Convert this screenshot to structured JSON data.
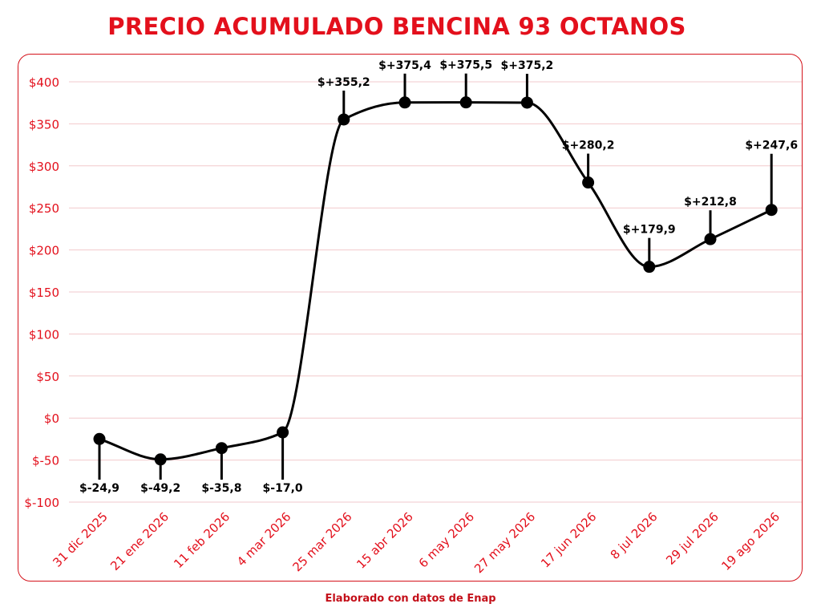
{
  "header": {
    "title": "PRECIO ACUMULADO BENCINA 93 OCTANOS"
  },
  "footer": {
    "credit": "Elaborado con datos de Enap"
  },
  "colors": {
    "accent": "#e3101c",
    "line": "#000000",
    "grid": "#f2c9cc"
  },
  "chart_data": {
    "type": "line",
    "title": "PRECIO ACUMULADO BENCINA 93 OCTANOS",
    "xlabel": "",
    "ylabel": "",
    "ylim": [
      -100,
      400
    ],
    "yticks": [
      -100,
      -50,
      0,
      50,
      100,
      150,
      200,
      250,
      300,
      350,
      400
    ],
    "ytick_labels": [
      "$-100",
      "$-50",
      "$0",
      "$50",
      "$100",
      "$150",
      "$200",
      "$250",
      "$300",
      "$350",
      "$400"
    ],
    "grid": true,
    "categories": [
      "31 dic 2025",
      "21 ene 2026",
      "11 feb 2026",
      "4 mar 2026",
      "25 mar 2026",
      "15 abr 2026",
      "6 may 2026",
      "27 may 2026",
      "17 jun 2026",
      "8 jul 2026",
      "29 jul 2026",
      "19 ago 2026"
    ],
    "values": [
      -24.9,
      -49.2,
      -35.8,
      -17.0,
      355.2,
      375.4,
      375.5,
      375.2,
      280.2,
      179.9,
      212.8,
      247.6
    ],
    "data_labels": [
      "$-24,9",
      "$-49,2",
      "$-35,8",
      "$-17,0",
      "$+355,2",
      "$+375,4",
      "$+375,5",
      "$+375,2",
      "$+280,2",
      "$+179,9",
      "$+212,8",
      "$+247,6"
    ]
  }
}
